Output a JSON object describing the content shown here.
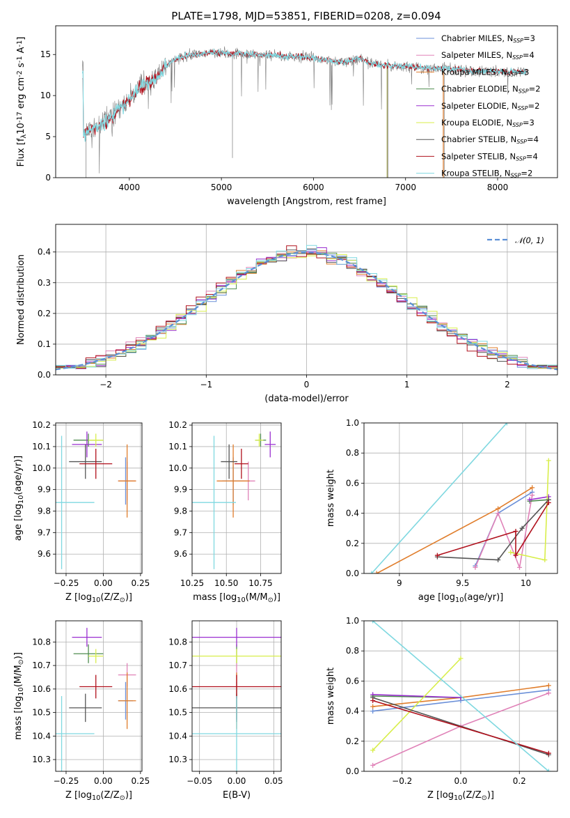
{
  "figure": {
    "title": "PLATE=1798, MJD=53851, FIBERID=0208, z=0.094"
  },
  "colors": {
    "Chabrier MILES": "#6a8fd8",
    "Salpeter MILES": "#e082b8",
    "Kroupa MILES": "#e07d2b",
    "Chabrier ELODIE": "#4f8c4f",
    "Salpeter ELODIE": "#9a2fd0",
    "Kroupa ELODIE": "#d8ee4a",
    "Chabrier STELIB": "#555555",
    "Salpeter STELIB": "#b0101c",
    "Kroupa STELIB": "#7fd8e0",
    "normal": "#5b8fd6",
    "grid": "#b0b0b0"
  },
  "chart_data": [
    {
      "id": "spectrum",
      "type": "line",
      "title": "PLATE=1798, MJD=53851, FIBERID=0208, z=0.094",
      "xlabel": "wavelength [Angstrom, rest frame]",
      "ylabel": "Flux [f$_\\lambda$10$^{-17}$ erg cm$^{-2}$ s$^{-1}$ A$^{-1}$]",
      "xlim": [
        3200,
        8650
      ],
      "ylim": [
        0,
        18.5
      ],
      "xticks": [
        4000,
        5000,
        6000,
        7000,
        8000
      ],
      "yticks": [
        0,
        5,
        10,
        15
      ],
      "grid": false,
      "legend_position": "right",
      "legend": [
        {
          "name": "Chabrier MILES",
          "nssp": "3"
        },
        {
          "name": "Salpeter MILES",
          "nssp": "4"
        },
        {
          "name": "Kroupa MILES",
          "nssp": "3"
        },
        {
          "name": "Chabrier ELODIE",
          "nssp": "2"
        },
        {
          "name": "Salpeter ELODIE",
          "nssp": "2"
        },
        {
          "name": "Kroupa ELODIE",
          "nssp": "3"
        },
        {
          "name": "Chabrier STELIB",
          "nssp": "4"
        },
        {
          "name": "Salpeter STELIB",
          "nssp": "4"
        },
        {
          "name": "Kroupa STELIB",
          "nssp": "2"
        }
      ],
      "continuum": {
        "x": [
          3500,
          3550,
          3600,
          3650,
          3700,
          3750,
          3800,
          3850,
          3900,
          3950,
          4000,
          4050,
          4100,
          4150,
          4200,
          4250,
          4300,
          4350,
          4400,
          4450,
          4500,
          4600,
          4700,
          4800,
          4900,
          5000,
          5100,
          5200,
          5300,
          5400,
          5500,
          5600,
          5700,
          5800,
          5900,
          6000,
          6100,
          6200,
          6300,
          6400,
          6500,
          6600,
          6700,
          6800,
          6900,
          7000,
          7100,
          7200,
          7300,
          7400,
          7500,
          7600,
          7700,
          7800,
          7900,
          8000,
          8100,
          8200,
          8300
        ],
        "y": [
          5.2,
          5.6,
          6.0,
          6.3,
          6.6,
          7.0,
          7.5,
          8.0,
          8.6,
          9.0,
          9.6,
          10.2,
          10.8,
          11.2,
          11.5,
          11.8,
          12.2,
          12.8,
          13.6,
          14.1,
          14.4,
          14.8,
          15.0,
          15.1,
          15.2,
          15.2,
          15.1,
          15.1,
          15.0,
          15.0,
          14.9,
          14.9,
          14.8,
          14.7,
          14.7,
          14.6,
          14.4,
          14.2,
          14.0,
          14.3,
          14.6,
          14.0,
          13.8,
          13.7,
          13.6,
          13.6,
          13.5,
          13.4,
          13.3,
          13.3,
          13.3,
          13.2,
          13.0,
          13.0,
          13.0,
          13.0,
          12.9,
          12.9,
          12.8
        ]
      }
    },
    {
      "id": "residuals",
      "type": "bar",
      "xlabel": "(data-model)/error",
      "ylabel": "Normed distribution",
      "xlim": [
        -2.5,
        2.5
      ],
      "ylim": [
        0,
        0.49
      ],
      "xticks": [
        -2,
        -1,
        0,
        1,
        2
      ],
      "yticks": [
        0.0,
        0.1,
        0.2,
        0.3,
        0.4
      ],
      "grid": true,
      "legend_position": "top-right",
      "legend": [
        {
          "name": "$\\mathcal{N}(0,1)$"
        }
      ],
      "bin_width": 0.1,
      "bin_start": -2.5
    },
    {
      "id": "age-z",
      "type": "scatter",
      "xlabel": "Z [log$_{10}$(Z/Z$_\\odot$)]",
      "ylabel": "age  [log$_{10}$(age/yr)]",
      "xlim": [
        -0.32,
        0.26
      ],
      "ylim": [
        9.51,
        10.21
      ],
      "xticks": [
        -0.25,
        0.0,
        0.25
      ],
      "xticklabels": [
        "−0.25",
        "0.00",
        "0.25"
      ],
      "yticks": [
        9.6,
        9.7,
        9.8,
        9.9,
        10.0,
        10.1,
        10.2
      ],
      "grid": true
    },
    {
      "id": "age-mass",
      "type": "scatter",
      "xlabel": "mass [log$_{10}$(M/M$_\\odot$)]",
      "xlim": [
        10.25,
        10.9
      ],
      "ylim": [
        9.51,
        10.21
      ],
      "xticks": [
        10.25,
        10.5,
        10.75
      ],
      "xticklabels": [
        "10.25",
        "10.50",
        "10.75"
      ],
      "yticks": [
        9.6,
        9.7,
        9.8,
        9.9,
        10.0,
        10.1,
        10.2
      ],
      "grid": true
    },
    {
      "id": "weight-age",
      "type": "line",
      "xlabel": "age  [log$_{10}$(age/yr)]",
      "ylabel": "mass weight",
      "xlim": [
        8.72,
        10.25
      ],
      "ylim": [
        0.0,
        1.0
      ],
      "xticks": [
        9.0,
        9.5,
        10.0
      ],
      "yticks": [
        0.0,
        0.2,
        0.4,
        0.6,
        0.8,
        1.0
      ],
      "grid": true
    },
    {
      "id": "mass-z",
      "type": "scatter",
      "xlabel": "Z [log$_{10}$(Z/Z$_\\odot$)]",
      "ylabel": "mass [log$_{10}$(M/M$_\\odot$)]",
      "xlim": [
        -0.32,
        0.26
      ],
      "ylim": [
        10.25,
        10.89
      ],
      "xticks": [
        -0.25,
        0.0,
        0.25
      ],
      "xticklabels": [
        "−0.25",
        "0.00",
        "0.25"
      ],
      "yticks": [
        10.3,
        10.4,
        10.5,
        10.6,
        10.7,
        10.8
      ],
      "grid": true
    },
    {
      "id": "mass-ebv",
      "type": "scatter",
      "xlabel": "E(B-V)",
      "xlim": [
        -0.06,
        0.06
      ],
      "ylim": [
        10.25,
        10.89
      ],
      "xticks": [
        -0.05,
        0.0,
        0.05
      ],
      "xticklabels": [
        "−0.05",
        "0.00",
        "0.05"
      ],
      "yticks": [
        10.3,
        10.4,
        10.5,
        10.6,
        10.7,
        10.8
      ],
      "grid": true
    },
    {
      "id": "weight-z",
      "type": "line",
      "xlabel": "Z [log$_{10}$(Z/Z$_\\odot$)]",
      "ylabel": "mass weight",
      "xlim": [
        -0.33,
        0.33
      ],
      "ylim": [
        0.0,
        1.0
      ],
      "xticks": [
        -0.2,
        0.0,
        0.2
      ],
      "xticklabels": [
        "−0.2",
        "0.0",
        "0.2"
      ],
      "yticks": [
        0.0,
        0.2,
        0.4,
        0.6,
        0.8,
        1.0
      ],
      "grid": true
    }
  ],
  "models": [
    {
      "name": "Chabrier MILES",
      "Z": [
        0.15,
        0.05
      ],
      "age": [
        9.94,
        0.11
      ],
      "mass": [
        10.55,
        0.08
      ],
      "ebv": [
        0.0,
        0.0
      ],
      "hist_shift": 0.05,
      "hist_seed": 3,
      "weights": [
        [
          9.6,
          0.05
        ],
        [
          9.78,
          0.4
        ],
        [
          10.05,
          0.54
        ]
      ],
      "zweights": [
        [
          -0.3,
          0.4
        ],
        [
          0.0,
          0.47
        ],
        [
          0.3,
          0.54
        ]
      ]
    },
    {
      "name": "Salpeter MILES",
      "Z": [
        0.16,
        0.06
      ],
      "age": [
        9.94,
        0.09
      ],
      "mass": [
        10.66,
        0.05
      ],
      "ebv": [
        0.0,
        0.0
      ],
      "hist_shift": -0.1,
      "hist_seed": 5,
      "weights": [
        [
          9.6,
          0.04
        ],
        [
          9.78,
          0.4
        ],
        [
          9.95,
          0.04
        ],
        [
          10.05,
          0.52
        ]
      ],
      "zweights": [
        [
          -0.3,
          0.04
        ],
        [
          0.0,
          0.3
        ],
        [
          0.3,
          0.52
        ]
      ]
    },
    {
      "name": "Kroupa MILES",
      "Z": [
        0.16,
        0.06
      ],
      "age": [
        9.94,
        0.17
      ],
      "mass": [
        10.55,
        0.12
      ],
      "ebv": [
        0.0,
        0.0
      ],
      "hist_shift": 0.02,
      "hist_seed": 7,
      "weights": [
        [
          8.82,
          0.0
        ],
        [
          9.78,
          0.43
        ],
        [
          10.05,
          0.57
        ]
      ],
      "zweights": [
        [
          -0.3,
          0.43
        ],
        [
          0.0,
          0.49
        ],
        [
          0.3,
          0.57
        ]
      ]
    },
    {
      "name": "Chabrier ELODIE",
      "Z": [
        -0.1,
        0.1
      ],
      "age": [
        10.13,
        0.03
      ],
      "mass": [
        10.75,
        0.04
      ],
      "ebv": [
        0.0,
        0.0
      ],
      "hist_shift": 0.08,
      "hist_seed": 11,
      "weights": [
        [
          10.03,
          0.48
        ],
        [
          10.18,
          0.49
        ]
      ],
      "zweights": [
        [
          -0.3,
          0.5
        ],
        [
          0.0,
          0.49
        ]
      ]
    },
    {
      "name": "Salpeter ELODIE",
      "Z": [
        -0.11,
        0.1
      ],
      "age": [
        10.11,
        0.06
      ],
      "mass": [
        10.82,
        0.04
      ],
      "ebv": [
        0.0,
        0.1
      ],
      "hist_shift": 0.0,
      "hist_seed": 13,
      "weights": [
        [
          10.03,
          0.49
        ],
        [
          10.18,
          0.51
        ]
      ],
      "zweights": [
        [
          -0.3,
          0.51
        ],
        [
          0.0,
          0.49
        ]
      ]
    },
    {
      "name": "Kroupa ELODIE",
      "Z": [
        -0.05,
        0.05
      ],
      "age": [
        10.13,
        0.03
      ],
      "mass": [
        10.74,
        0.03
      ],
      "ebv": [
        0.0,
        0.06
      ],
      "hist_shift": 0.12,
      "hist_seed": 17,
      "weights": [
        [
          9.88,
          0.14
        ],
        [
          10.15,
          0.09
        ],
        [
          10.18,
          0.75
        ]
      ],
      "zweights": [
        [
          -0.3,
          0.14
        ],
        [
          0.0,
          0.75
        ]
      ]
    },
    {
      "name": "Chabrier STELIB",
      "Z": [
        -0.12,
        0.11
      ],
      "age": [
        10.03,
        0.08
      ],
      "mass": [
        10.52,
        0.06
      ],
      "ebv": [
        0.0,
        0.07
      ],
      "hist_shift": -0.05,
      "hist_seed": 19,
      "weights": [
        [
          9.3,
          0.11
        ],
        [
          9.78,
          0.09
        ],
        [
          9.97,
          0.3
        ],
        [
          10.18,
          0.49
        ]
      ],
      "zweights": [
        [
          -0.3,
          0.49
        ],
        [
          0.3,
          0.11
        ]
      ]
    },
    {
      "name": "Salpeter STELIB",
      "Z": [
        -0.05,
        0.11
      ],
      "age": [
        10.02,
        0.07
      ],
      "mass": [
        10.61,
        0.05
      ],
      "ebv": [
        0.0,
        0.11
      ],
      "hist_shift": -0.15,
      "hist_seed": 23,
      "weights": [
        [
          9.3,
          0.12
        ],
        [
          9.92,
          0.28
        ],
        [
          9.92,
          0.12
        ],
        [
          10.18,
          0.47
        ]
      ],
      "zweights": [
        [
          -0.3,
          0.47
        ],
        [
          0.3,
          0.12
        ]
      ]
    },
    {
      "name": "Kroupa STELIB",
      "Z": [
        -0.28,
        0.22
      ],
      "age": [
        9.84,
        0.31
      ],
      "mass": [
        10.41,
        0.16
      ],
      "ebv": [
        0.0,
        0.16
      ],
      "hist_shift": 0.0,
      "hist_seed": 29,
      "weights": [
        [
          8.78,
          0.0
        ],
        [
          9.85,
          1.0
        ]
      ],
      "zweights": [
        [
          -0.3,
          1.0
        ],
        [
          0.3,
          0.0
        ]
      ]
    }
  ]
}
